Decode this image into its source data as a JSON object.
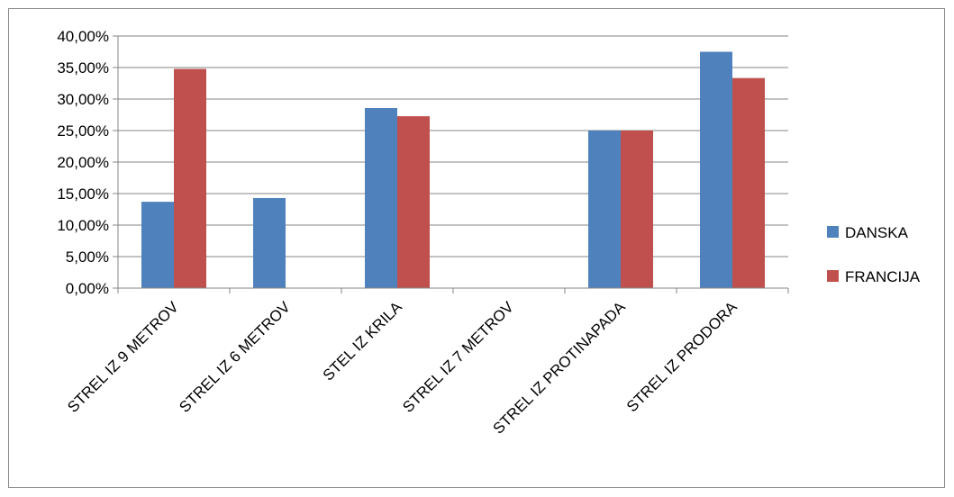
{
  "chart_data": {
    "type": "bar",
    "title": "",
    "xlabel": "",
    "ylabel": "",
    "categories": [
      "STREL IZ 9 METROV",
      "STREL IZ 6 METROV",
      "STEL IZ KRILA",
      "STREL IZ 7 METROV",
      "STREL IZ PROTINAPADA",
      "STREL IZ PRODORA"
    ],
    "series": [
      {
        "name": "DANSKA",
        "color": "#4f81bd",
        "values": [
          0.137,
          0.1429,
          0.2857,
          0.0,
          0.25,
          0.375
        ]
      },
      {
        "name": "FRANCIJA",
        "color": "#c0504d",
        "values": [
          0.3478,
          0.0,
          0.2727,
          0.0,
          0.25,
          0.3333
        ]
      }
    ],
    "ylim": [
      0,
      0.4
    ],
    "y_ticks": [
      0,
      0.05,
      0.1,
      0.15,
      0.2,
      0.25,
      0.3,
      0.35,
      0.4
    ],
    "y_tick_labels": [
      "0,00%",
      "5,00%",
      "10,00%",
      "15,00%",
      "20,00%",
      "25,00%",
      "30,00%",
      "35,00%",
      "40,00%"
    ],
    "grid": true,
    "legend_position": "right"
  }
}
